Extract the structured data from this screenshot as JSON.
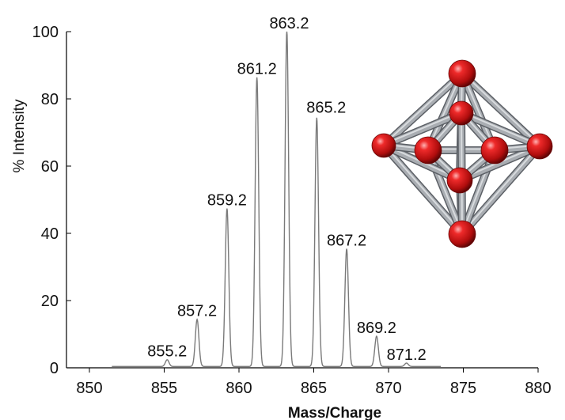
{
  "chart_data": {
    "type": "line",
    "xlabel": "Mass/Charge",
    "ylabel": "% Intensity",
    "xlim": [
      850,
      880
    ],
    "ylim": [
      0,
      100
    ],
    "x_ticks": [
      "850",
      "855",
      "860",
      "865",
      "870",
      "875",
      "880"
    ],
    "y_ticks": [
      "0",
      "20",
      "40",
      "60",
      "80",
      "100"
    ],
    "grid": false,
    "line_color": "#7a7a7a",
    "peaks": [
      {
        "x": 855.2,
        "y": 2,
        "label": "855.2"
      },
      {
        "x": 857.2,
        "y": 14,
        "label": "857.2"
      },
      {
        "x": 859.2,
        "y": 47,
        "label": "859.2"
      },
      {
        "x": 861.2,
        "y": 86,
        "label": "861.2"
      },
      {
        "x": 863.2,
        "y": 100,
        "label": "863.2"
      },
      {
        "x": 865.2,
        "y": 74,
        "label": "865.2"
      },
      {
        "x": 867.2,
        "y": 35,
        "label": "867.2"
      },
      {
        "x": 869.2,
        "y": 9,
        "label": "869.2"
      },
      {
        "x": 871.2,
        "y": 1,
        "label": "871.2"
      }
    ]
  },
  "inset": {
    "type": "octahedral-cluster-model",
    "atom_color": "#cc1010",
    "bond_color": "#9a9ea3"
  }
}
